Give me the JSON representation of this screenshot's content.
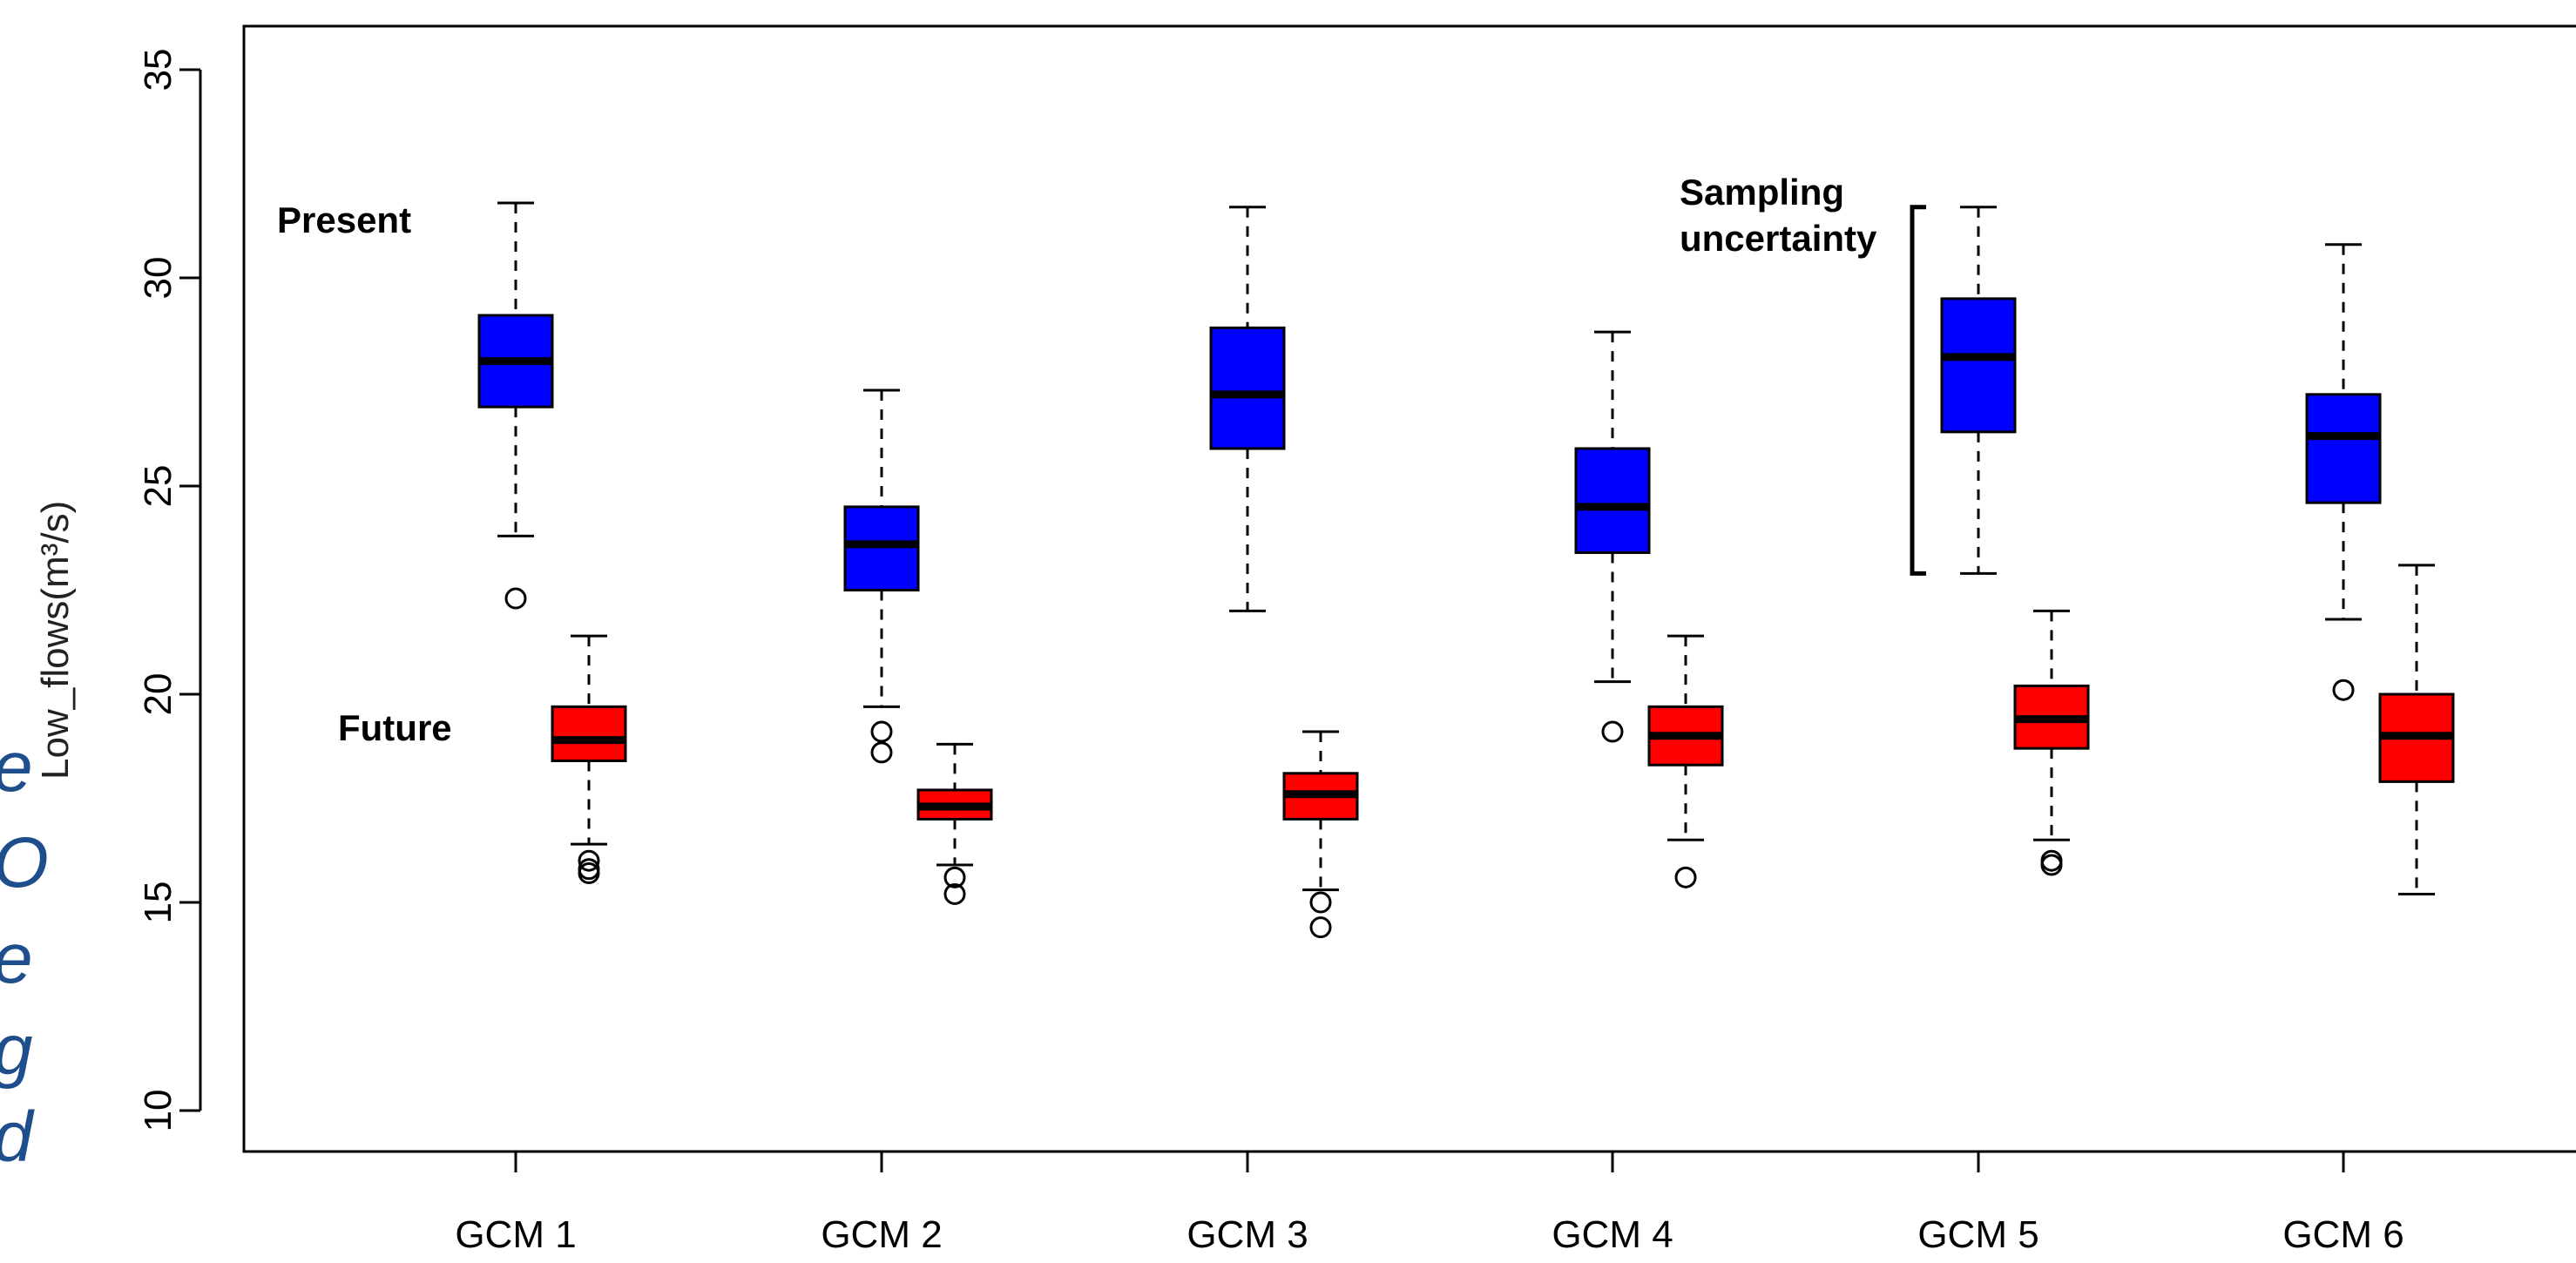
{
  "side_text_fragments": [
    "e",
    "O",
    "e",
    "g",
    "d"
  ],
  "chart_data": {
    "type": "boxplot",
    "title": "",
    "xlabel": "",
    "ylabel": "Low_flows(m³/s)",
    "ylim": [
      9,
      36
    ],
    "yticks": [
      10,
      15,
      20,
      25,
      30,
      35
    ],
    "categories": [
      "GCM 1",
      "GCM 2",
      "GCM 3",
      "GCM 4",
      "GCM 5",
      "GCM 6"
    ],
    "legend": "none",
    "grid": false,
    "colors": {
      "present": "#0000ff",
      "future": "#ff0000"
    },
    "series": [
      {
        "name": "Present",
        "color": "#0000ff",
        "boxes": [
          {
            "whisker_low": 23.8,
            "q1": 26.9,
            "median": 28.0,
            "q3": 29.1,
            "whisker_high": 31.8,
            "outliers": [
              22.3
            ]
          },
          {
            "whisker_low": 19.7,
            "q1": 22.5,
            "median": 23.6,
            "q3": 24.5,
            "whisker_high": 27.3,
            "outliers": [
              19.1,
              18.6
            ]
          },
          {
            "whisker_low": 22.0,
            "q1": 25.9,
            "median": 27.2,
            "q3": 28.8,
            "whisker_high": 31.7,
            "outliers": []
          },
          {
            "whisker_low": 20.3,
            "q1": 23.4,
            "median": 24.5,
            "q3": 25.9,
            "whisker_high": 28.7,
            "outliers": [
              19.1
            ]
          },
          {
            "whisker_low": 22.9,
            "q1": 26.3,
            "median": 28.1,
            "q3": 29.5,
            "whisker_high": 31.7,
            "outliers": []
          },
          {
            "whisker_low": 21.8,
            "q1": 24.6,
            "median": 26.2,
            "q3": 27.2,
            "whisker_high": 30.8,
            "outliers": [
              20.1
            ]
          }
        ]
      },
      {
        "name": "Future",
        "color": "#ff0000",
        "boxes": [
          {
            "whisker_low": 16.4,
            "q1": 18.4,
            "median": 18.9,
            "q3": 19.7,
            "whisker_high": 21.4,
            "outliers": [
              16.0,
              15.8,
              15.7
            ]
          },
          {
            "whisker_low": 15.9,
            "q1": 17.0,
            "median": 17.3,
            "q3": 17.7,
            "whisker_high": 18.8,
            "outliers": [
              15.6,
              15.2
            ]
          },
          {
            "whisker_low": 15.3,
            "q1": 17.0,
            "median": 17.6,
            "q3": 18.1,
            "whisker_high": 19.1,
            "outliers": [
              15.0,
              14.4
            ]
          },
          {
            "whisker_low": 16.5,
            "q1": 18.3,
            "median": 19.0,
            "q3": 19.7,
            "whisker_high": 21.4,
            "outliers": [
              15.6
            ]
          },
          {
            "whisker_low": 16.5,
            "q1": 18.7,
            "median": 19.4,
            "q3": 20.2,
            "whisker_high": 22.0,
            "outliers": [
              16.0,
              15.9
            ]
          },
          {
            "whisker_low": 15.2,
            "q1": 17.9,
            "median": 19.0,
            "q3": 20.0,
            "whisker_high": 23.1,
            "outliers": []
          }
        ]
      }
    ],
    "annotations": [
      {
        "text": "Present",
        "near": "GCM 1 present box (left)"
      },
      {
        "text": "Future",
        "near": "GCM 1 future box (left)"
      },
      {
        "text": "Sampling uncertainty",
        "lines": [
          "Sampling",
          "uncertainty"
        ],
        "bracket_range": [
          22.9,
          31.7
        ],
        "near": "GCM 5 present box (left)"
      }
    ]
  }
}
